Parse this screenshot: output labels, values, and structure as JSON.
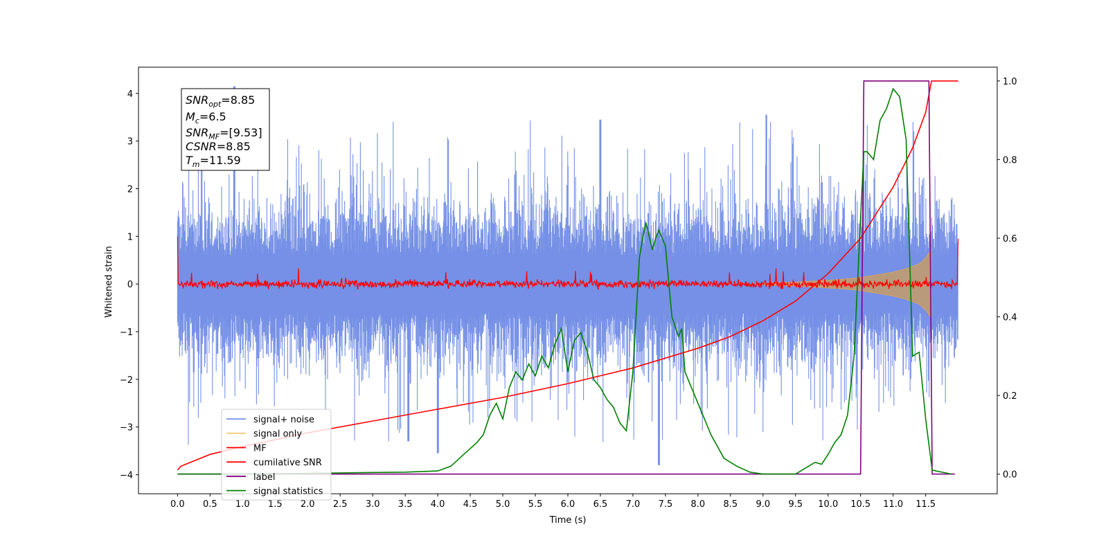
{
  "chart_data": {
    "type": "line",
    "xlabel": "Time (s)",
    "ylabel": "Whitened strain",
    "xlim": [
      -0.6,
      12.6
    ],
    "ylim": [
      -4.4,
      4.55
    ],
    "y2lim": [
      -0.05,
      1.035
    ],
    "xticks": [
      0.0,
      0.5,
      1.0,
      1.5,
      2.0,
      2.5,
      3.0,
      3.5,
      4.0,
      4.5,
      5.0,
      5.5,
      6.0,
      6.5,
      7.0,
      7.5,
      8.0,
      8.5,
      9.0,
      9.5,
      10.0,
      10.5,
      11.0,
      11.5
    ],
    "xtick_labels": [
      "0.0",
      "0.5",
      "1.0",
      "1.5",
      "2.0",
      "2.5",
      "3.0",
      "3.5",
      "4.0",
      "4.5",
      "5.0",
      "5.5",
      "6.0",
      "6.5",
      "7.0",
      "7.5",
      "8.0",
      "8.5",
      "9.0",
      "9.5",
      "10.0",
      "10.5",
      "11.0",
      "11.5"
    ],
    "yticks": [
      -4,
      -3,
      -2,
      -1,
      0,
      1,
      2,
      3,
      4
    ],
    "ytick_labels": [
      "−4",
      "−3",
      "−2",
      "−1",
      "0",
      "1",
      "2",
      "3",
      "4"
    ],
    "y2ticks": [
      0.0,
      0.2,
      0.4,
      0.6,
      0.8,
      1.0
    ],
    "y2tick_labels": [
      "0.0",
      "0.2",
      "0.4",
      "0.6",
      "0.8",
      "1.0"
    ],
    "annotation": [
      {
        "symbol": "SNR",
        "sub": "opt",
        "value": "=8.85"
      },
      {
        "symbol": "M",
        "sub": "c",
        "value": "=6.5"
      },
      {
        "symbol": "SNR",
        "sub": "MF",
        "value": "=[9.53]"
      },
      {
        "symbol": "CSNR",
        "sub": "",
        "value": "=8.85"
      },
      {
        "symbol": "T",
        "sub": "m",
        "value": "=11.59"
      }
    ],
    "legend_position": "lower-left",
    "series": [
      {
        "name": "signal+ noise",
        "color": "#7590e6",
        "axis": "left",
        "render": "noise_band",
        "x_range": [
          0.0,
          12.0
        ],
        "typical_range": [
          -1.6,
          1.6
        ],
        "envelope_peaks": [
          [
            0.87,
            4.15
          ],
          [
            7.4,
            -3.8
          ],
          [
            4.0,
            -3.55
          ],
          [
            3.55,
            -3.3
          ],
          [
            9.05,
            3.55
          ],
          [
            6.5,
            3.45
          ]
        ]
      },
      {
        "name": "signal only",
        "color": "#d8a25e",
        "axis": "left",
        "render": "chirp_envelope",
        "x": [
          9.0,
          9.5,
          10.0,
          10.4,
          10.7,
          11.0,
          11.2,
          11.4,
          11.5,
          11.59
        ],
        "amplitude": [
          0.02,
          0.04,
          0.08,
          0.12,
          0.18,
          0.25,
          0.32,
          0.42,
          0.55,
          0.72
        ]
      },
      {
        "name": "MF",
        "color": "#ff0000",
        "axis": "left",
        "render": "noise_band",
        "x_range": [
          0.0,
          12.0
        ],
        "typical_range": [
          -0.12,
          0.12
        ],
        "edge_values": [
          [
            0.0,
            1.0
          ],
          [
            12.0,
            0.95
          ]
        ]
      },
      {
        "name": "cumilative SNR",
        "color": "#ff0000",
        "axis": "right",
        "x": [
          0.0,
          0.05,
          0.5,
          1.0,
          2.0,
          3.0,
          4.0,
          5.0,
          6.0,
          7.0,
          8.0,
          8.5,
          9.0,
          9.5,
          10.0,
          10.5,
          11.0,
          11.3,
          11.5,
          11.59,
          12.0
        ],
        "values": [
          0.01,
          0.02,
          0.05,
          0.07,
          0.105,
          0.135,
          0.165,
          0.195,
          0.23,
          0.27,
          0.32,
          0.35,
          0.39,
          0.44,
          0.51,
          0.6,
          0.73,
          0.83,
          0.92,
          1.0,
          1.0
        ]
      },
      {
        "name": "label",
        "color": "#800080",
        "axis": "right",
        "x": [
          0.0,
          10.5,
          10.55,
          11.55,
          11.6,
          11.95
        ],
        "values": [
          0.0,
          0.0,
          1.0,
          1.0,
          0.0,
          0.0
        ]
      },
      {
        "name": "signal statistics",
        "color": "#008000",
        "axis": "right",
        "x": [
          0.0,
          0.5,
          1.0,
          1.5,
          2.0,
          2.5,
          3.0,
          3.5,
          4.0,
          4.2,
          4.4,
          4.6,
          4.7,
          4.8,
          4.9,
          5.0,
          5.1,
          5.2,
          5.3,
          5.4,
          5.5,
          5.6,
          5.7,
          5.8,
          5.9,
          6.0,
          6.1,
          6.2,
          6.3,
          6.4,
          6.5,
          6.6,
          6.7,
          6.8,
          6.9,
          7.0,
          7.1,
          7.15,
          7.2,
          7.3,
          7.35,
          7.4,
          7.5,
          7.6,
          7.7,
          7.75,
          7.8,
          7.9,
          8.0,
          8.2,
          8.4,
          8.6,
          8.8,
          9.0,
          9.5,
          9.7,
          9.8,
          9.9,
          10.0,
          10.1,
          10.2,
          10.3,
          10.4,
          10.5,
          10.55,
          10.6,
          10.7,
          10.8,
          10.9,
          11.0,
          11.1,
          11.2,
          11.3,
          11.4,
          11.5,
          11.6,
          11.9
        ],
        "values": [
          0.0,
          0.0,
          0.0,
          0.001,
          0.002,
          0.003,
          0.004,
          0.005,
          0.008,
          0.02,
          0.05,
          0.08,
          0.1,
          0.15,
          0.18,
          0.14,
          0.22,
          0.26,
          0.24,
          0.28,
          0.25,
          0.3,
          0.27,
          0.33,
          0.37,
          0.26,
          0.34,
          0.36,
          0.31,
          0.24,
          0.22,
          0.19,
          0.17,
          0.13,
          0.11,
          0.26,
          0.55,
          0.6,
          0.64,
          0.57,
          0.6,
          0.62,
          0.58,
          0.4,
          0.35,
          0.37,
          0.26,
          0.22,
          0.18,
          0.1,
          0.04,
          0.02,
          0.005,
          0.0,
          0.0,
          0.02,
          0.03,
          0.025,
          0.05,
          0.08,
          0.1,
          0.15,
          0.3,
          0.65,
          0.82,
          0.82,
          0.8,
          0.9,
          0.93,
          0.98,
          0.96,
          0.85,
          0.3,
          0.31,
          0.14,
          0.01,
          0.0
        ]
      }
    ]
  }
}
